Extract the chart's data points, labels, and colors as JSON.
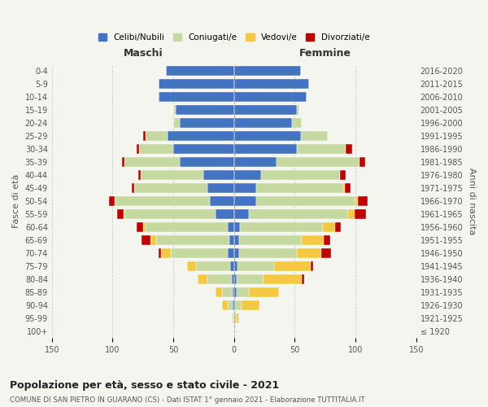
{
  "age_groups": [
    "100+",
    "95-99",
    "90-94",
    "85-89",
    "80-84",
    "75-79",
    "70-74",
    "65-69",
    "60-64",
    "55-59",
    "50-54",
    "45-49",
    "40-44",
    "35-39",
    "30-34",
    "25-29",
    "20-24",
    "15-19",
    "10-14",
    "5-9",
    "0-4"
  ],
  "birth_years": [
    "≤ 1920",
    "1921-1925",
    "1926-1930",
    "1931-1935",
    "1936-1940",
    "1941-1945",
    "1946-1950",
    "1951-1955",
    "1956-1960",
    "1961-1965",
    "1966-1970",
    "1971-1975",
    "1976-1980",
    "1981-1985",
    "1986-1990",
    "1991-1995",
    "1996-2000",
    "2001-2005",
    "2006-2010",
    "2011-2015",
    "2016-2020"
  ],
  "maschi": {
    "celibi": [
      0,
      0,
      1,
      1,
      2,
      3,
      5,
      4,
      5,
      15,
      20,
      22,
      25,
      45,
      50,
      55,
      45,
      48,
      62,
      62,
      56
    ],
    "coniugati": [
      0,
      1,
      4,
      9,
      20,
      28,
      47,
      60,
      68,
      75,
      78,
      60,
      52,
      45,
      28,
      18,
      5,
      2,
      0,
      0,
      0
    ],
    "vedovi": [
      0,
      1,
      5,
      5,
      8,
      8,
      8,
      5,
      2,
      1,
      0,
      0,
      0,
      0,
      0,
      0,
      0,
      0,
      0,
      0,
      0
    ],
    "divorziati": [
      0,
      0,
      0,
      0,
      0,
      0,
      2,
      7,
      5,
      5,
      5,
      2,
      2,
      2,
      2,
      2,
      0,
      0,
      0,
      0,
      0
    ]
  },
  "femmine": {
    "nubili": [
      0,
      0,
      1,
      2,
      2,
      3,
      4,
      4,
      5,
      12,
      18,
      18,
      22,
      35,
      52,
      55,
      48,
      52,
      60,
      62,
      55
    ],
    "coniugate": [
      0,
      2,
      5,
      10,
      22,
      30,
      48,
      52,
      68,
      82,
      82,
      72,
      65,
      68,
      40,
      22,
      8,
      2,
      0,
      0,
      0
    ],
    "vedove": [
      0,
      2,
      15,
      25,
      32,
      30,
      20,
      18,
      10,
      5,
      2,
      1,
      0,
      0,
      0,
      0,
      0,
      0,
      0,
      0,
      0
    ],
    "divorziate": [
      0,
      0,
      0,
      0,
      2,
      2,
      8,
      5,
      5,
      10,
      8,
      5,
      5,
      5,
      5,
      0,
      0,
      0,
      0,
      0,
      0
    ]
  },
  "colors": {
    "celibi": "#4472c4",
    "coniugati": "#c5d9a0",
    "vedovi": "#f5c842",
    "divorziati": "#c00000"
  },
  "xlim": 150,
  "title": "Popolazione per età, sesso e stato civile - 2021",
  "subtitle": "COMUNE DI SAN PIETRO IN GUARANO (CS) - Dati ISTAT 1° gennaio 2021 - Elaborazione TUTTITALIA.IT",
  "ylabel_left": "Fasce di età",
  "ylabel_right": "Anni di nascita",
  "maschi_label": "Maschi",
  "femmine_label": "Femmine",
  "legend_labels": [
    "Celibi/Nubili",
    "Coniugati/e",
    "Vedovi/e",
    "Divorziati/e"
  ],
  "background": "#f5f5f0"
}
